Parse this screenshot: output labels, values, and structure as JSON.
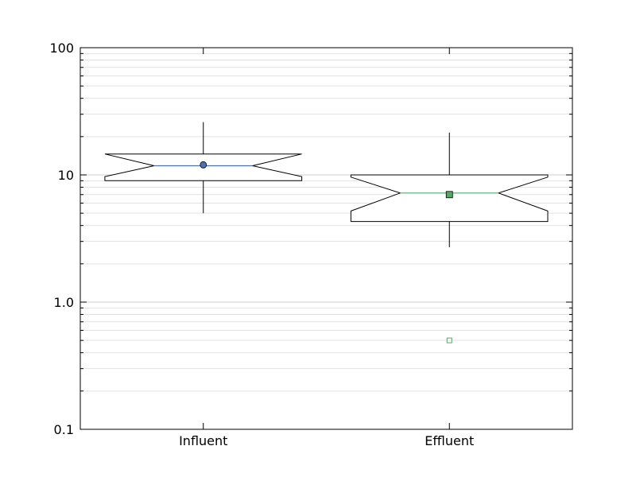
{
  "chart_data": {
    "type": "boxplot",
    "title": "",
    "xlabel": "",
    "ylabel": "",
    "yscale": "log",
    "ylim": [
      0.1,
      100
    ],
    "yticks": [
      0.1,
      1.0,
      10,
      100
    ],
    "ytick_labels": [
      "0.1",
      "1.0",
      "10",
      "100"
    ],
    "grid": "horizontal minor and major lines",
    "categories": [
      "Influent",
      "Effluent"
    ],
    "boxes": [
      {
        "label": "Influent",
        "whisker_low": 5.0,
        "q1": 9.0,
        "notch_low": 9.7,
        "median": 11.8,
        "notch_high": 14.6,
        "q3": 14.6,
        "whisker_high": 26.0,
        "mean": 12.0,
        "mean_marker": "circle",
        "color": "#4c72b0",
        "outliers": []
      },
      {
        "label": "Effluent",
        "whisker_low": 2.7,
        "q1": 4.3,
        "notch_low": 5.2,
        "median": 7.2,
        "notch_high": 9.6,
        "q3": 10.0,
        "whisker_high": 21.5,
        "mean": 7.0,
        "mean_marker": "square",
        "color": "#55a868",
        "outliers": [
          0.5
        ]
      }
    ]
  }
}
